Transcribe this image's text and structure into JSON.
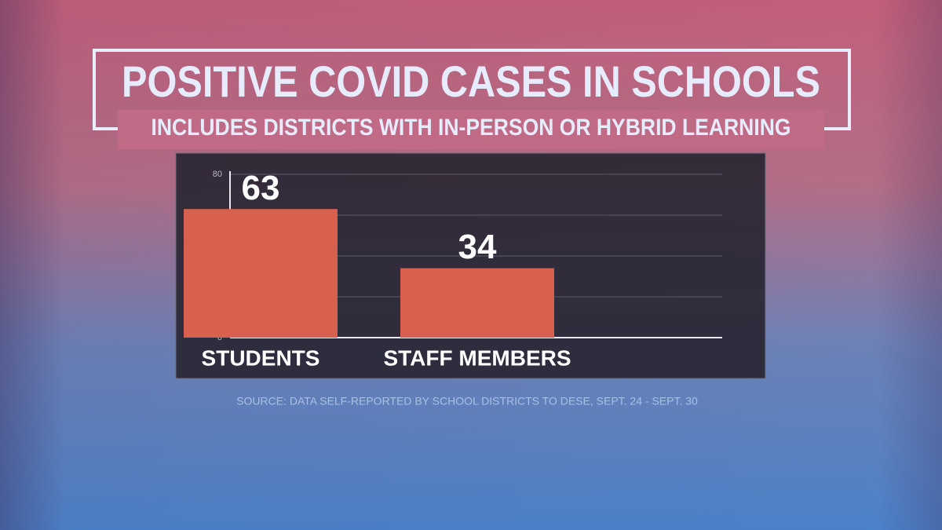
{
  "chart_data": {
    "type": "bar",
    "title": "POSITIVE COVID CASES IN SCHOOLS",
    "subtitle": "INCLUDES DISTRICTS WITH IN-PERSON OR HYBRID LEARNING",
    "categories": [
      "STUDENTS",
      "STAFF MEMBERS"
    ],
    "values": [
      63,
      34
    ],
    "color": "#d8604f",
    "ylim": [
      0,
      80
    ],
    "yticks": [
      0,
      20,
      40,
      60,
      80
    ],
    "grid": true,
    "source": "SOURCE: DATA SELF-REPORTED BY SCHOOL DISTRICTS TO DESE, SEPT. 24 - SEPT. 30"
  }
}
